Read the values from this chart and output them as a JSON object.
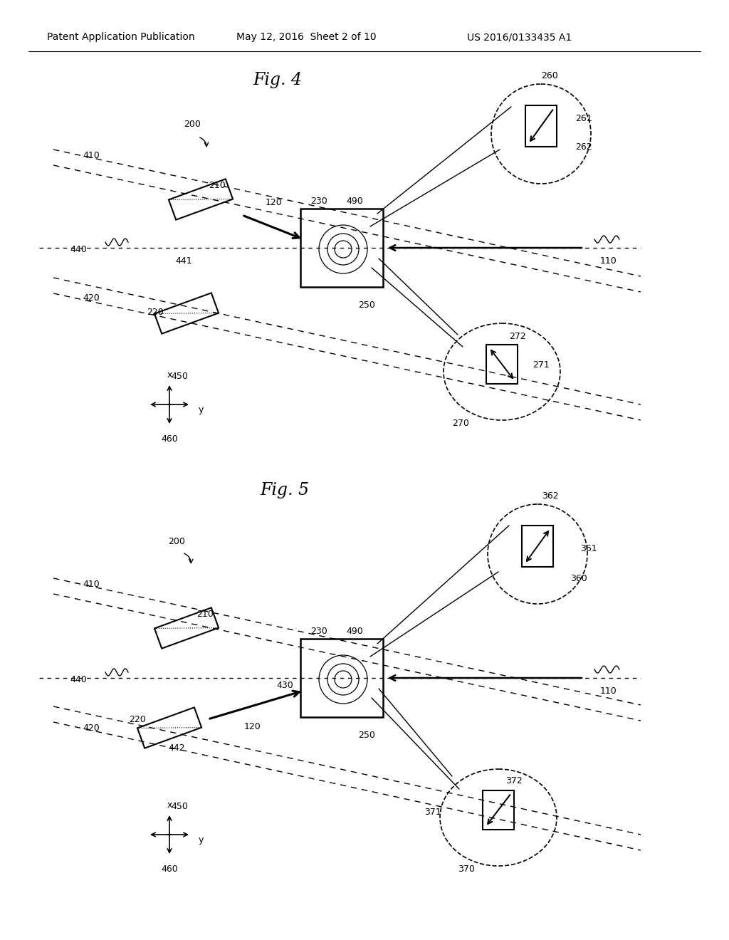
{
  "header_left": "Patent Application Publication",
  "header_mid": "May 12, 2016  Sheet 2 of 10",
  "header_right": "US 2016/0133435 A1",
  "fig4_title": "Fig. 4",
  "fig5_title": "Fig. 5",
  "bg_color": "#ffffff",
  "line_color": "#000000"
}
